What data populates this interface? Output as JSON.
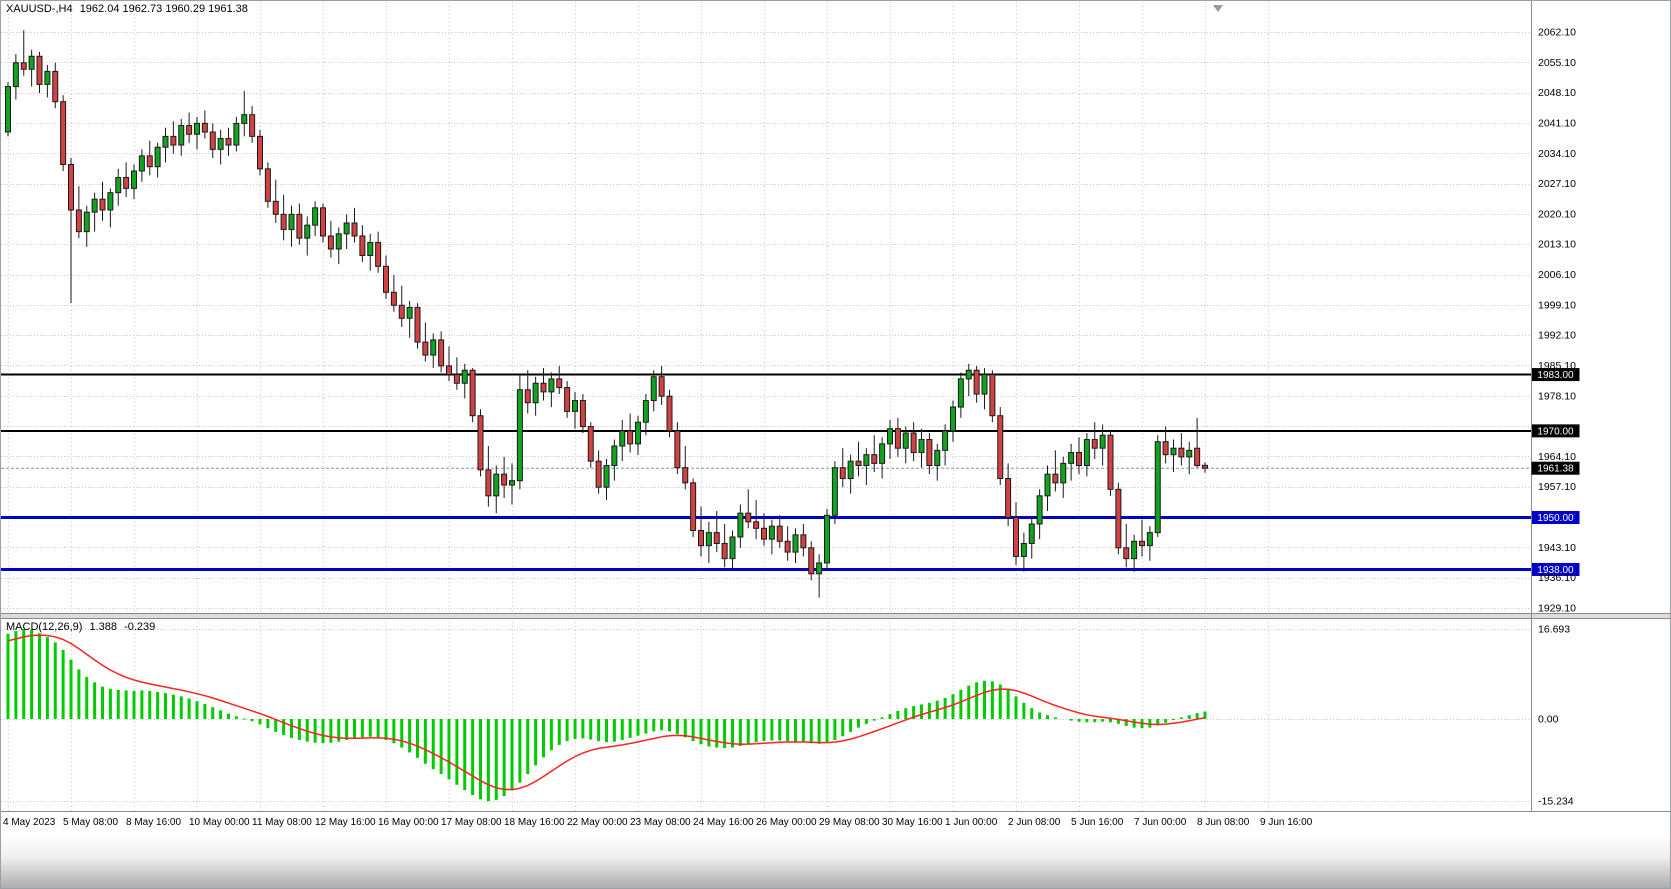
{
  "header": {
    "symbol_period": "XAUUSD-,H4",
    "ohlc": "1962.04 1962.73 1960.29 1961.38"
  },
  "indicator_label": {
    "name": "MACD(12,26,9)",
    "main_value": "1.388",
    "signal_value": "-0.239"
  },
  "price_axis": {
    "top_price": 2062.1,
    "bottom_price": 1929.1,
    "step": 7.0,
    "visible_labels": [
      "2062.10",
      "2055.10",
      "2048.10",
      "2041.10",
      "2034.10",
      "2027.10",
      "2020.10",
      "2013.10",
      "2006.10",
      "1999.10",
      "1992.10",
      "1985.10",
      "1978.10",
      "1964.10",
      "1957.10",
      "1943.10",
      "1936.10",
      "1929.10"
    ]
  },
  "macd_axis": {
    "max": 16.693,
    "min": -15.234,
    "max_label": "16.693",
    "zero_label": "0.00",
    "min_label": "-15.234"
  },
  "levels": [
    {
      "price": 1983.0,
      "label": "1983.00",
      "color": "#000000",
      "width": 2
    },
    {
      "price": 1970.0,
      "label": "1970.00",
      "color": "#000000",
      "width": 2
    },
    {
      "price": 1950.0,
      "label": "1950.00",
      "color": "#0000C8",
      "width": 3
    },
    {
      "price": 1938.0,
      "label": "1938.00",
      "color": "#0000C8",
      "width": 3
    }
  ],
  "current_price": {
    "price": 1961.38,
    "label": "1961.38",
    "line_color": "#8796a6",
    "badge_color": "#000000"
  },
  "time_axis": [
    "4 May 2023",
    "5 May 08:00",
    "8 May 16:00",
    "10 May 00:00",
    "11 May 08:00",
    "12 May 16:00",
    "16 May 00:00",
    "17 May 08:00",
    "18 May 16:00",
    "22 May 00:00",
    "23 May 08:00",
    "24 May 16:00",
    "26 May 00:00",
    "29 May 08:00",
    "30 May 16:00",
    "1 Jun 00:00",
    "2 Jun 08:00",
    "5 Jun 16:00",
    "7 Jun 00:00",
    "8 Jun 08:00",
    "9 Jun 16:00"
  ],
  "colors": {
    "bull": "#12a31f",
    "bear": "#d24242",
    "outline": "#1a1a1a",
    "grid": "#c9c9c9",
    "macd_bar": "#00cc00",
    "macd_signal": "#ff2222",
    "separator": "#8a8a8a",
    "axis_text": "#000000",
    "badge_text": "#ffffff",
    "background": "#ffffff"
  },
  "chart_data": {
    "type": "candlestick",
    "symbol": "XAUUSD-",
    "timeframe": "H4",
    "title": "XAUUSD-,H4",
    "last_ohlc": [
      1962.04,
      1962.73,
      1960.29,
      1961.38
    ],
    "horizontal_levels": [
      1983.0,
      1970.0,
      1950.0,
      1938.0
    ],
    "current_price": 1961.38,
    "candles": [
      [
        2039.0,
        2050.5,
        2038.0,
        2049.5
      ],
      [
        2049.5,
        2057.0,
        2046.5,
        2055.0
      ],
      [
        2055.0,
        2062.5,
        2052.0,
        2053.5
      ],
      [
        2053.5,
        2058.0,
        2049.5,
        2056.5
      ],
      [
        2056.5,
        2057.5,
        2048.0,
        2050.0
      ],
      [
        2050.0,
        2054.5,
        2047.0,
        2053.0
      ],
      [
        2053.0,
        2055.0,
        2044.5,
        2046.0
      ],
      [
        2046.0,
        2047.5,
        2030.0,
        2031.5
      ],
      [
        2031.5,
        2033.0,
        1999.5,
        2021.0
      ],
      [
        2021.0,
        2026.5,
        2014.5,
        2016.0
      ],
      [
        2016.0,
        2022.0,
        2012.5,
        2020.5
      ],
      [
        2020.5,
        2025.0,
        2016.0,
        2023.5
      ],
      [
        2023.5,
        2027.5,
        2018.5,
        2021.0
      ],
      [
        2021.0,
        2026.0,
        2017.0,
        2025.0
      ],
      [
        2025.0,
        2030.5,
        2022.0,
        2028.5
      ],
      [
        2028.5,
        2032.0,
        2024.0,
        2026.0
      ],
      [
        2026.0,
        2031.5,
        2023.5,
        2030.0
      ],
      [
        2030.0,
        2035.0,
        2027.5,
        2033.5
      ],
      [
        2033.5,
        2037.0,
        2029.0,
        2031.0
      ],
      [
        2031.0,
        2036.5,
        2028.5,
        2035.5
      ],
      [
        2035.5,
        2040.0,
        2032.0,
        2038.0
      ],
      [
        2038.0,
        2041.5,
        2034.0,
        2036.0
      ],
      [
        2036.0,
        2042.0,
        2033.5,
        2040.5
      ],
      [
        2040.5,
        2043.5,
        2036.5,
        2038.5
      ],
      [
        2038.5,
        2042.5,
        2035.0,
        2041.0
      ],
      [
        2041.0,
        2044.0,
        2037.5,
        2039.0
      ],
      [
        2039.0,
        2041.0,
        2033.0,
        2035.0
      ],
      [
        2035.0,
        2039.5,
        2031.5,
        2037.5
      ],
      [
        2037.5,
        2040.0,
        2033.5,
        2036.0
      ],
      [
        2036.0,
        2042.5,
        2034.5,
        2041.0
      ],
      [
        2041.0,
        2048.5,
        2038.0,
        2043.0
      ],
      [
        2043.0,
        2045.0,
        2036.5,
        2038.0
      ],
      [
        2038.0,
        2039.5,
        2029.0,
        2030.5
      ],
      [
        2030.5,
        2032.0,
        2021.5,
        2023.0
      ],
      [
        2023.0,
        2028.0,
        2018.0,
        2020.0
      ],
      [
        2020.0,
        2024.5,
        2014.0,
        2016.5
      ],
      [
        2016.5,
        2022.0,
        2012.5,
        2020.0
      ],
      [
        2020.0,
        2022.5,
        2013.0,
        2014.5
      ],
      [
        2014.5,
        2019.5,
        2010.5,
        2017.5
      ],
      [
        2017.5,
        2023.0,
        2015.0,
        2021.5
      ],
      [
        2021.5,
        2022.5,
        2013.5,
        2015.0
      ],
      [
        2015.0,
        2018.5,
        2010.0,
        2012.0
      ],
      [
        2012.0,
        2017.0,
        2008.5,
        2015.5
      ],
      [
        2015.5,
        2020.0,
        2012.0,
        2018.0
      ],
      [
        2018.0,
        2021.5,
        2013.5,
        2015.0
      ],
      [
        2015.0,
        2017.5,
        2009.0,
        2010.5
      ],
      [
        2010.5,
        2015.5,
        2007.0,
        2013.5
      ],
      [
        2013.5,
        2016.0,
        2006.5,
        2008.0
      ],
      [
        2008.0,
        2010.5,
        2000.5,
        2002.0
      ],
      [
        2002.0,
        2006.0,
        1997.5,
        1999.0
      ],
      [
        1999.0,
        2003.5,
        1994.0,
        1996.0
      ],
      [
        1996.0,
        2000.0,
        1991.5,
        1998.5
      ],
      [
        1998.5,
        1999.5,
        1989.0,
        1990.5
      ],
      [
        1990.5,
        1995.0,
        1986.0,
        1987.5
      ],
      [
        1987.5,
        1992.5,
        1984.5,
        1991.0
      ],
      [
        1991.0,
        1993.0,
        1983.5,
        1985.0
      ],
      [
        1985.0,
        1989.5,
        1981.5,
        1983.0
      ],
      [
        1983.0,
        1987.0,
        1979.5,
        1981.0
      ],
      [
        1981.0,
        1985.5,
        1977.5,
        1984.0
      ],
      [
        1984.0,
        1984.5,
        1972.0,
        1973.5
      ],
      [
        1973.5,
        1975.0,
        1959.5,
        1961.0
      ],
      [
        1961.0,
        1966.5,
        1952.5,
        1955.0
      ],
      [
        1955.0,
        1962.0,
        1951.0,
        1960.0
      ],
      [
        1960.0,
        1964.0,
        1954.5,
        1957.5
      ],
      [
        1957.5,
        1962.5,
        1953.0,
        1958.5
      ],
      [
        1958.5,
        1983.0,
        1956.5,
        1979.5
      ],
      [
        1979.5,
        1984.0,
        1974.0,
        1976.5
      ],
      [
        1976.5,
        1982.5,
        1973.5,
        1981.0
      ],
      [
        1981.0,
        1984.5,
        1977.0,
        1979.0
      ],
      [
        1979.0,
        1983.5,
        1975.5,
        1982.0
      ],
      [
        1982.0,
        1985.0,
        1978.5,
        1980.0
      ],
      [
        1980.0,
        1981.5,
        1973.0,
        1974.5
      ],
      [
        1974.5,
        1979.0,
        1970.5,
        1977.0
      ],
      [
        1977.0,
        1978.5,
        1969.5,
        1971.0
      ],
      [
        1971.0,
        1972.0,
        1961.5,
        1963.0
      ],
      [
        1963.0,
        1965.5,
        1955.5,
        1957.0
      ],
      [
        1957.0,
        1963.5,
        1954.0,
        1962.0
      ],
      [
        1962.0,
        1968.0,
        1958.5,
        1966.5
      ],
      [
        1966.5,
        1972.5,
        1963.0,
        1970.0
      ],
      [
        1970.0,
        1974.0,
        1965.0,
        1967.0
      ],
      [
        1967.0,
        1973.5,
        1964.5,
        1972.0
      ],
      [
        1972.0,
        1978.5,
        1969.0,
        1977.0
      ],
      [
        1977.0,
        1984.0,
        1974.5,
        1982.5
      ],
      [
        1982.5,
        1985.0,
        1976.0,
        1978.0
      ],
      [
        1978.0,
        1979.5,
        1968.5,
        1970.0
      ],
      [
        1970.0,
        1972.0,
        1960.0,
        1961.5
      ],
      [
        1961.5,
        1966.5,
        1956.5,
        1958.0
      ],
      [
        1958.0,
        1959.0,
        1945.5,
        1947.0
      ],
      [
        1947.0,
        1952.5,
        1941.0,
        1943.5
      ],
      [
        1943.5,
        1949.0,
        1939.5,
        1946.5
      ],
      [
        1946.5,
        1951.5,
        1942.0,
        1944.0
      ],
      [
        1944.0,
        1948.5,
        1938.5,
        1940.5
      ],
      [
        1940.5,
        1947.0,
        1938.0,
        1945.5
      ],
      [
        1945.5,
        1953.0,
        1943.0,
        1951.0
      ],
      [
        1951.0,
        1956.5,
        1947.5,
        1949.0
      ],
      [
        1949.0,
        1954.0,
        1945.0,
        1947.5
      ],
      [
        1947.5,
        1951.0,
        1943.5,
        1945.0
      ],
      [
        1945.0,
        1949.5,
        1941.5,
        1948.0
      ],
      [
        1948.0,
        1950.5,
        1943.0,
        1944.5
      ],
      [
        1944.5,
        1948.0,
        1940.0,
        1942.0
      ],
      [
        1942.0,
        1947.5,
        1939.5,
        1946.0
      ],
      [
        1946.0,
        1948.5,
        1941.0,
        1943.0
      ],
      [
        1943.0,
        1944.5,
        1935.5,
        1937.0
      ],
      [
        1937.0,
        1941.5,
        1931.5,
        1939.5
      ],
      [
        1939.5,
        1952.0,
        1938.0,
        1950.5
      ],
      [
        1950.5,
        1963.0,
        1948.5,
        1961.5
      ],
      [
        1961.5,
        1966.0,
        1957.0,
        1959.0
      ],
      [
        1959.0,
        1964.5,
        1955.5,
        1963.0
      ],
      [
        1963.0,
        1967.5,
        1959.5,
        1962.0
      ],
      [
        1962.0,
        1966.0,
        1957.5,
        1964.5
      ],
      [
        1964.5,
        1969.0,
        1960.5,
        1962.5
      ],
      [
        1962.5,
        1968.5,
        1959.0,
        1967.0
      ],
      [
        1967.0,
        1972.5,
        1963.5,
        1970.5
      ],
      [
        1970.5,
        1973.0,
        1964.0,
        1966.0
      ],
      [
        1966.0,
        1971.0,
        1962.5,
        1969.5
      ],
      [
        1969.5,
        1972.0,
        1963.0,
        1965.0
      ],
      [
        1965.0,
        1970.5,
        1961.5,
        1968.0
      ],
      [
        1968.0,
        1969.5,
        1960.0,
        1962.0
      ],
      [
        1962.0,
        1967.0,
        1958.5,
        1965.5
      ],
      [
        1965.5,
        1971.5,
        1962.0,
        1970.0
      ],
      [
        1970.0,
        1977.0,
        1967.5,
        1975.5
      ],
      [
        1975.5,
        1983.5,
        1973.0,
        1982.0
      ],
      [
        1982.0,
        1985.5,
        1978.0,
        1984.0
      ],
      [
        1984.0,
        1985.0,
        1976.5,
        1978.5
      ],
      [
        1978.5,
        1984.5,
        1975.0,
        1983.0
      ],
      [
        1983.0,
        1984.0,
        1972.0,
        1973.5
      ],
      [
        1973.5,
        1975.5,
        1957.5,
        1959.0
      ],
      [
        1959.0,
        1962.5,
        1948.0,
        1950.0
      ],
      [
        1950.0,
        1953.5,
        1939.0,
        1941.0
      ],
      [
        1941.0,
        1946.5,
        1937.5,
        1944.0
      ],
      [
        1944.0,
        1950.0,
        1940.5,
        1948.5
      ],
      [
        1948.5,
        1956.5,
        1945.0,
        1955.0
      ],
      [
        1955.0,
        1962.0,
        1951.5,
        1960.0
      ],
      [
        1960.0,
        1965.5,
        1956.0,
        1958.0
      ],
      [
        1958.0,
        1964.0,
        1954.5,
        1962.5
      ],
      [
        1962.5,
        1967.0,
        1958.5,
        1965.0
      ],
      [
        1965.0,
        1968.5,
        1960.0,
        1962.0
      ],
      [
        1962.0,
        1969.5,
        1959.5,
        1968.0
      ],
      [
        1968.0,
        1972.0,
        1963.5,
        1966.0
      ],
      [
        1966.0,
        1971.5,
        1962.0,
        1969.0
      ],
      [
        1969.0,
        1970.0,
        1955.0,
        1956.5
      ],
      [
        1956.5,
        1958.0,
        1941.5,
        1943.0
      ],
      [
        1943.0,
        1948.5,
        1938.5,
        1940.5
      ],
      [
        1940.5,
        1946.0,
        1937.5,
        1944.5
      ],
      [
        1944.5,
        1949.5,
        1941.0,
        1943.5
      ],
      [
        1943.5,
        1948.0,
        1940.0,
        1946.5
      ],
      [
        1946.5,
        1969.0,
        1945.5,
        1967.5
      ],
      [
        1967.5,
        1971.0,
        1962.5,
        1964.5
      ],
      [
        1964.5,
        1968.0,
        1960.5,
        1966.0
      ],
      [
        1966.0,
        1969.5,
        1962.0,
        1964.0
      ],
      [
        1964.0,
        1967.5,
        1960.0,
        1965.5
      ],
      [
        1966.0,
        1973.0,
        1961.5,
        1962.0
      ],
      [
        1962.04,
        1962.73,
        1960.29,
        1961.38
      ]
    ],
    "indicator": {
      "type": "bar+line",
      "name": "MACD(12,26,9)",
      "signal_period": 9,
      "last_main": 1.388,
      "last_signal": -0.239,
      "range": [
        -15.234,
        16.693
      ],
      "histogram": [
        15.8,
        16.3,
        16.693,
        16.5,
        15.9,
        15.2,
        14.2,
        12.8,
        11.0,
        9.2,
        7.8,
        6.8,
        6.0,
        5.6,
        5.4,
        5.3,
        5.2,
        5.3,
        5.2,
        5.0,
        4.8,
        4.5,
        4.2,
        3.8,
        3.3,
        2.8,
        2.2,
        1.6,
        1.0,
        0.5,
        0.1,
        -0.4,
        -1.0,
        -1.7,
        -2.4,
        -3.0,
        -3.5,
        -3.9,
        -4.2,
        -4.4,
        -4.5,
        -4.4,
        -4.2,
        -3.9,
        -3.6,
        -3.4,
        -3.3,
        -3.5,
        -3.9,
        -4.5,
        -5.3,
        -6.2,
        -7.2,
        -8.3,
        -9.3,
        -10.2,
        -11.2,
        -12.2,
        -13.2,
        -14.1,
        -14.9,
        -15.234,
        -15.0,
        -14.3,
        -13.2,
        -11.8,
        -10.2,
        -8.6,
        -7.1,
        -5.8,
        -4.8,
        -4.1,
        -3.7,
        -3.6,
        -3.8,
        -4.1,
        -4.3,
        -4.2,
        -3.9,
        -3.5,
        -3.1,
        -2.7,
        -2.3,
        -2.1,
        -2.3,
        -2.8,
        -3.4,
        -4.1,
        -4.7,
        -5.1,
        -5.3,
        -5.4,
        -5.3,
        -5.0,
        -4.6,
        -4.3,
        -4.1,
        -4.0,
        -4.0,
        -4.1,
        -4.2,
        -4.3,
        -4.5,
        -4.6,
        -4.4,
        -3.9,
        -3.2,
        -2.4,
        -1.6,
        -0.9,
        -0.3,
        0.3,
        0.9,
        1.5,
        2.0,
        2.4,
        2.7,
        3.0,
        3.4,
        3.9,
        4.6,
        5.4,
        6.2,
        6.8,
        7.1,
        7.0,
        6.4,
        5.4,
        4.2,
        3.0,
        2.0,
        1.2,
        0.7,
        0.3,
        0.0,
        -0.3,
        -0.5,
        -0.6,
        -0.6,
        -0.5,
        -0.6,
        -0.9,
        -1.3,
        -1.6,
        -1.7,
        -1.6,
        -1.2,
        -0.7,
        -0.2,
        0.3,
        0.7,
        1.1,
        1.388
      ]
    }
  }
}
